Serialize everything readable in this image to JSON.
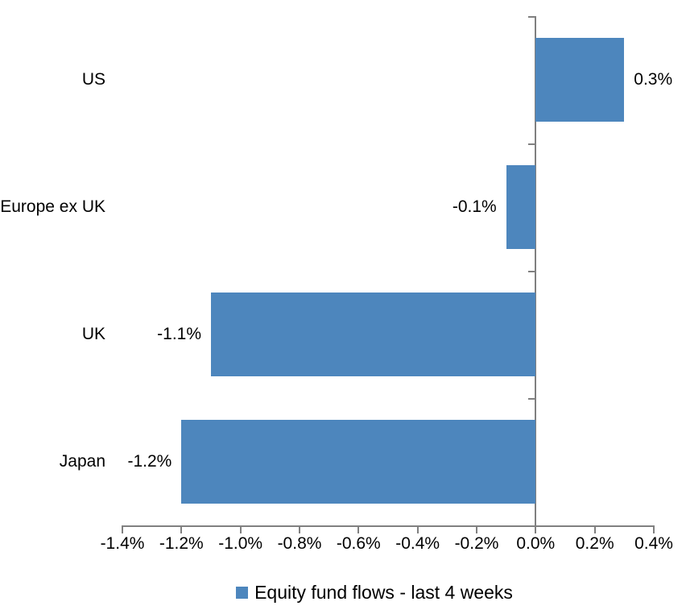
{
  "chart_data": {
    "type": "bar",
    "orientation": "horizontal",
    "title": "",
    "xlabel": "",
    "ylabel": "",
    "categories": [
      "US",
      "Europe ex UK",
      "UK",
      "Japan"
    ],
    "values": [
      0.3,
      -0.1,
      -1.1,
      -1.2
    ],
    "data_labels": [
      "0.3%",
      "-0.1%",
      "-1.1%",
      "-1.2%"
    ],
    "series_name": "Equity fund flows - last 4 weeks",
    "xlim": [
      -1.4,
      0.4
    ],
    "x_tick_values": [
      -1.4,
      -1.2,
      -1.0,
      -0.8,
      -0.6,
      -0.4,
      -0.2,
      0.0,
      0.2,
      0.4
    ],
    "x_tick_labels": [
      "-1.4%",
      "-1.2%",
      "-1.0%",
      "-0.8%",
      "-0.6%",
      "-0.4%",
      "-0.2%",
      "0.0%",
      "0.2%",
      "0.4%"
    ],
    "grid": false,
    "legend_position": "bottom",
    "bar_color": "#4D86BD",
    "axis_color": "#808080",
    "text_color": "#000000",
    "background_color": "#ffffff"
  }
}
